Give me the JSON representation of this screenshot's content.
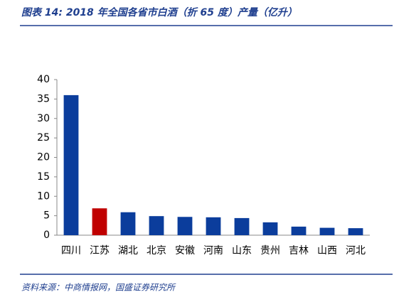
{
  "chart_data": {
    "type": "bar",
    "title": "图表 14: 2018 年全国各省市白酒（折 65 度）产量（亿升）",
    "source": "资料来源：中商情报网，国盛证券研究所",
    "categories": [
      "四川",
      "江苏",
      "湖北",
      "北京",
      "安徽",
      "河南",
      "山东",
      "贵州",
      "吉林",
      "山西",
      "河北"
    ],
    "values": [
      36.0,
      6.9,
      5.9,
      4.9,
      4.7,
      4.6,
      4.4,
      3.3,
      2.2,
      1.9,
      1.8
    ],
    "colors": [
      "#0b3d9c",
      "#c00000",
      "#0b3d9c",
      "#0b3d9c",
      "#0b3d9c",
      "#0b3d9c",
      "#0b3d9c",
      "#0b3d9c",
      "#0b3d9c",
      "#0b3d9c",
      "#0b3d9c"
    ],
    "ylim": [
      0,
      40
    ],
    "yticks": [
      0,
      5,
      10,
      15,
      20,
      25,
      30,
      35,
      40
    ],
    "grid": false
  }
}
